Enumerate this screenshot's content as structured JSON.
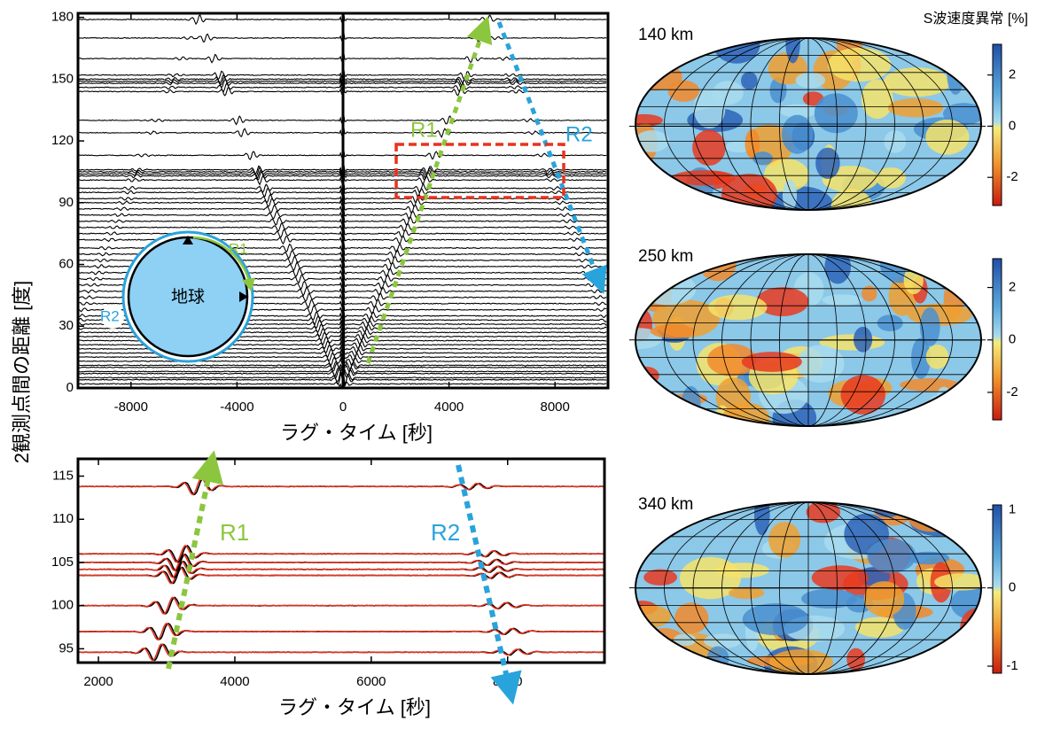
{
  "chart_data": [
    {
      "type": "record-section",
      "xlabel": "ラグ・タイム [秒]",
      "ylabel": "2観測点間の距離 [度]",
      "xlim": [
        -10000,
        10000
      ],
      "xticks": [
        -8000,
        -4000,
        0,
        4000,
        8000
      ],
      "ylim": [
        0,
        182
      ],
      "yticks": [
        0,
        30,
        60,
        90,
        120,
        150,
        180
      ],
      "traces": [
        2,
        4,
        5,
        7,
        8,
        10,
        11,
        13,
        15,
        17,
        19,
        21,
        23,
        25,
        27,
        29,
        31,
        33,
        35,
        38,
        41,
        44,
        47,
        50,
        53,
        56,
        59,
        62,
        65,
        68,
        72,
        75,
        78,
        81,
        84,
        87,
        90,
        92,
        95,
        97,
        101,
        103,
        104,
        105,
        106,
        113,
        124,
        130,
        144,
        146,
        148,
        149,
        150,
        152,
        160,
        170,
        179
      ],
      "annotations": [
        "R1",
        "R2"
      ],
      "inset_labels": [
        "地球",
        "R1",
        "R2"
      ]
    },
    {
      "type": "record-section",
      "xlabel": "ラグ・タイム [秒]",
      "xlim": [
        1700,
        9420
      ],
      "xticks": [
        2000,
        4000,
        6000,
        8000
      ],
      "ylim": [
        93.4,
        117
      ],
      "yticks": [
        95,
        100,
        105,
        110,
        115
      ],
      "traces": [
        94.6,
        97,
        100,
        103.5,
        104.2,
        105,
        106,
        113.8
      ],
      "annotations": [
        "R1",
        "R2"
      ]
    },
    {
      "type": "map",
      "title": "140 km",
      "colorbar_label": "S波速度異常 [%]",
      "ylim": [
        -3.1,
        3.2
      ],
      "yticks": [
        -2,
        0,
        2
      ]
    },
    {
      "type": "map",
      "title": "250 km",
      "ylim": [
        -3.05,
        3.1
      ],
      "yticks": [
        -2,
        0,
        2
      ]
    },
    {
      "type": "map",
      "title": "340 km",
      "ylim": [
        -1.09,
        1.06
      ],
      "yticks": [
        -1,
        0,
        1
      ]
    }
  ]
}
